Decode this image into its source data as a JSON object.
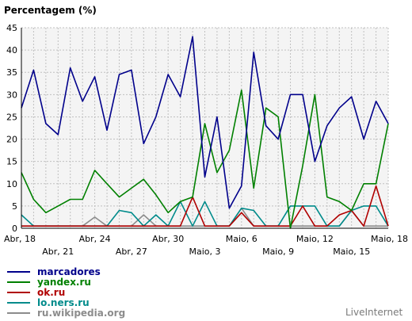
{
  "chart_data": {
    "type": "line",
    "title": "Percentagem (%)",
    "ylim": [
      0,
      45
    ],
    "yticks": [
      0,
      5,
      10,
      15,
      20,
      25,
      30,
      35,
      40,
      45
    ],
    "grid": true,
    "x": [
      "Abr, 18",
      "Abr, 19",
      "Abr, 20",
      "Abr, 21",
      "Abr, 22",
      "Abr, 23",
      "Abr, 24",
      "Abr, 25",
      "Abr, 26",
      "Abr, 27",
      "Abr, 28",
      "Abr, 29",
      "Abr, 30",
      "Maio, 1",
      "Maio, 2",
      "Maio, 3",
      "Maio, 4",
      "Maio, 5",
      "Maio, 6",
      "Maio, 7",
      "Maio, 8",
      "Maio, 9",
      "Maio, 10",
      "Maio, 11",
      "Maio, 12",
      "Maio, 13",
      "Maio, 14",
      "Maio, 15",
      "Maio, 16",
      "Maio, 17",
      "Maio, 18"
    ],
    "xticks_upper": [
      "Abr, 18",
      "Abr, 24",
      "Abr, 30",
      "Maio, 6",
      "Maio, 12",
      "Maio, 18"
    ],
    "xticks_lower": [
      "Abr, 21",
      "Abr, 27",
      "Maio, 3",
      "Maio, 9",
      "Maio, 15"
    ],
    "series": [
      {
        "name": "marcadores",
        "color": "#00008b",
        "points": [
          [
            0,
            27
          ],
          [
            1,
            35.5
          ],
          [
            2,
            23.5
          ],
          [
            3,
            21
          ],
          [
            4,
            36
          ],
          [
            5,
            28.5
          ],
          [
            6,
            34
          ],
          [
            7,
            22
          ],
          [
            8,
            34.5
          ],
          [
            9,
            35.5
          ],
          [
            10,
            19
          ],
          [
            11,
            25
          ],
          [
            12,
            34.5
          ],
          [
            13,
            29.5
          ],
          [
            14,
            43
          ],
          [
            15,
            11.5
          ],
          [
            16,
            25
          ],
          [
            17,
            4.5
          ],
          [
            18,
            9.5
          ],
          [
            19,
            39.5
          ],
          [
            20,
            23
          ],
          [
            21,
            20
          ],
          [
            22,
            30
          ],
          [
            23,
            30
          ],
          [
            24,
            15
          ],
          [
            25,
            23
          ],
          [
            26,
            27
          ],
          [
            27,
            29.5
          ],
          [
            28,
            20
          ],
          [
            29,
            28.5
          ],
          [
            30,
            23.5
          ]
        ]
      },
      {
        "name": "yandex.ru",
        "color": "#008000",
        "points": [
          [
            0,
            12.5
          ],
          [
            1,
            6.5
          ],
          [
            2,
            3.5
          ],
          [
            3,
            5
          ],
          [
            4,
            6.5
          ],
          [
            5,
            6.5
          ],
          [
            6,
            13
          ],
          [
            7,
            10
          ],
          [
            8,
            7
          ],
          [
            9,
            9
          ],
          [
            10,
            11
          ],
          [
            11,
            7.5
          ],
          [
            12,
            3.5
          ],
          [
            13,
            6
          ],
          [
            14,
            7
          ],
          [
            15,
            23.5
          ],
          [
            16,
            12.5
          ],
          [
            17,
            17.5
          ],
          [
            18,
            31
          ],
          [
            19,
            9
          ],
          [
            20,
            27
          ],
          [
            21,
            25
          ],
          [
            22,
            0
          ],
          [
            23,
            14
          ],
          [
            24,
            30
          ],
          [
            25,
            7
          ],
          [
            26,
            6
          ],
          [
            27,
            4
          ],
          [
            28,
            10
          ],
          [
            29,
            10
          ],
          [
            30,
            23.5
          ]
        ]
      },
      {
        "name": "ok.ru",
        "color": "#b00000",
        "points": [
          [
            0,
            0.5
          ],
          [
            1,
            0.5
          ],
          [
            2,
            0.5
          ],
          [
            3,
            0.5
          ],
          [
            4,
            0.5
          ],
          [
            5,
            0.5
          ],
          [
            6,
            0.5
          ],
          [
            7,
            0.5
          ],
          [
            8,
            0.5
          ],
          [
            9,
            0.5
          ],
          [
            10,
            0.5
          ],
          [
            11,
            0.5
          ],
          [
            12,
            0.5
          ],
          [
            13,
            0.5
          ],
          [
            14,
            7
          ],
          [
            15,
            0.5
          ],
          [
            16,
            0.5
          ],
          [
            17,
            0.5
          ],
          [
            18,
            3.5
          ],
          [
            19,
            0.5
          ],
          [
            20,
            0.5
          ],
          [
            21,
            0.5
          ],
          [
            22,
            0.5
          ],
          [
            23,
            5
          ],
          [
            24,
            0.5
          ],
          [
            25,
            0.5
          ],
          [
            26,
            3
          ],
          [
            27,
            4
          ],
          [
            28,
            0.5
          ],
          [
            29,
            9.5
          ],
          [
            30,
            0.5
          ]
        ]
      },
      {
        "name": "lo.ners.ru",
        "color": "#008b8b",
        "points": [
          [
            0,
            3
          ],
          [
            1,
            0.5
          ],
          [
            2,
            0.5
          ],
          [
            3,
            0.5
          ],
          [
            4,
            0.5
          ],
          [
            5,
            0.5
          ],
          [
            6,
            0.5
          ],
          [
            7,
            0.5
          ],
          [
            8,
            4
          ],
          [
            9,
            3.5
          ],
          [
            10,
            0.5
          ],
          [
            11,
            3
          ],
          [
            12,
            0.5
          ],
          [
            13,
            6
          ],
          [
            14,
            0.5
          ],
          [
            15,
            6
          ],
          [
            16,
            0.5
          ],
          [
            17,
            0.5
          ],
          [
            18,
            4.5
          ],
          [
            19,
            4
          ],
          [
            20,
            0.5
          ],
          [
            21,
            0.5
          ],
          [
            22,
            5
          ],
          [
            23,
            5
          ],
          [
            24,
            5
          ],
          [
            25,
            0.5
          ],
          [
            26,
            0.5
          ],
          [
            27,
            4
          ],
          [
            28,
            5
          ],
          [
            29,
            5
          ],
          [
            30,
            0.5
          ]
        ]
      },
      {
        "name": "ru.wikipedia.org",
        "color": "#8c8c8c",
        "points": [
          [
            0,
            0.5
          ],
          [
            1,
            0.5
          ],
          [
            2,
            0.5
          ],
          [
            3,
            0.5
          ],
          [
            4,
            0.5
          ],
          [
            5,
            0.5
          ],
          [
            6,
            2.5
          ],
          [
            7,
            0.5
          ],
          [
            8,
            0.5
          ],
          [
            9,
            0.5
          ],
          [
            10,
            3
          ],
          [
            11,
            0.5
          ],
          [
            12,
            0.5
          ],
          [
            13,
            0.5
          ],
          [
            14,
            0.5
          ],
          [
            15,
            0.5
          ],
          [
            16,
            0.5
          ],
          [
            17,
            0.5
          ],
          [
            18,
            4.5
          ],
          [
            19,
            0.5
          ],
          [
            20,
            0.5
          ],
          [
            21,
            0.5
          ],
          [
            22,
            0.5
          ],
          [
            23,
            0.5
          ],
          [
            24,
            0.5
          ],
          [
            25,
            0.5
          ],
          [
            26,
            0.5
          ],
          [
            27,
            4
          ],
          [
            28,
            0.5
          ],
          [
            29,
            0.5
          ],
          [
            30,
            0.5
          ]
        ]
      }
    ]
  },
  "brand": "LiveInternet"
}
